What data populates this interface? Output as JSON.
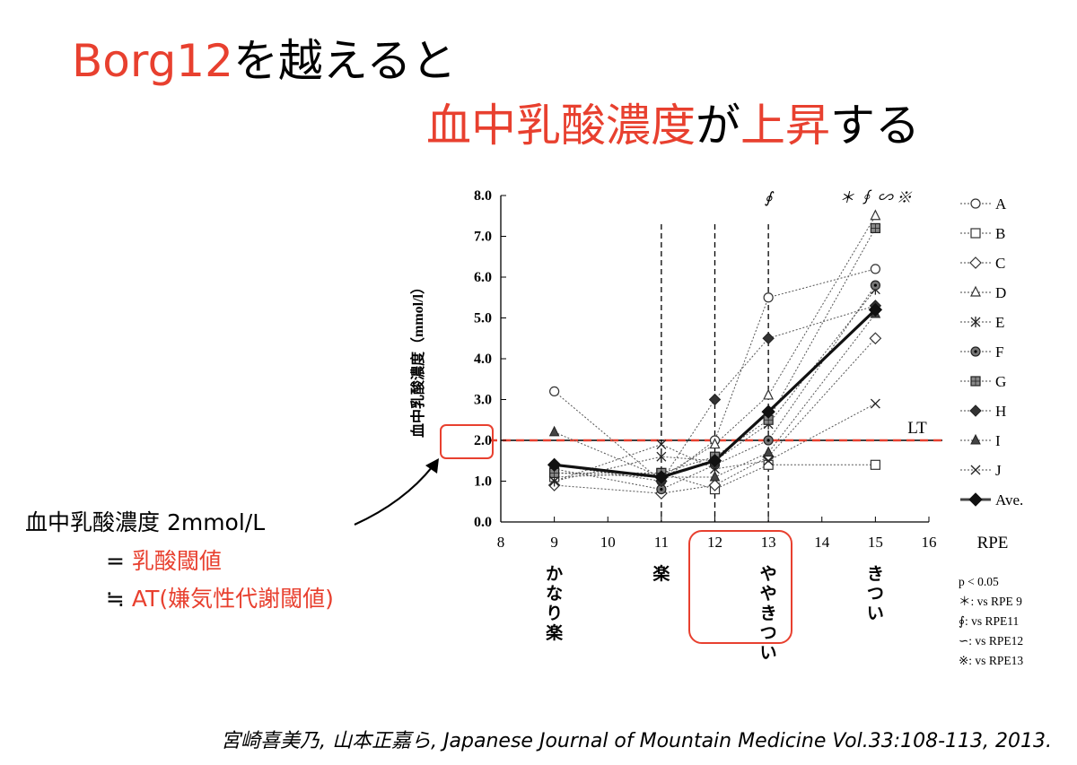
{
  "title": {
    "line1_part1": "Borg12",
    "line1_part2": "を越えると",
    "line2_part1": "血中乳酸濃度",
    "line2_part2": "が",
    "line2_part3": "上昇",
    "line2_part4": "する"
  },
  "annotation": {
    "line1": "血中乳酸濃度 2mmol/L",
    "line2_prefix": "= ",
    "line2_text": "乳酸閾値",
    "line3_prefix": "≒ ",
    "line3_text": "AT(嫌気性代謝閾値)"
  },
  "citation": "宮崎喜美乃, 山本正嘉ら, Japanese Journal of Mountain Medicine Vol.33:108-113, 2013.",
  "colors": {
    "accent_red": "#e8402f",
    "ink": "#000000",
    "ave": "#111111"
  },
  "chart_data": {
    "type": "line",
    "xlabel": "RPE",
    "ylabel": "血中乳酸濃度（mmol/l）",
    "xlim": [
      8,
      16
    ],
    "ylim": [
      0,
      8
    ],
    "x_ticks": [
      "8",
      "9",
      "10",
      "11",
      "12",
      "13",
      "14",
      "15",
      "16"
    ],
    "y_ticks": [
      "0.0",
      "1.0",
      "2.0",
      "3.0",
      "4.0",
      "5.0",
      "6.0",
      "7.0",
      "8.0"
    ],
    "rpe_labels": [
      {
        "x": 9,
        "text": "かなり楽"
      },
      {
        "x": 11,
        "text": "楽"
      },
      {
        "x": 13,
        "text": "ややきつい"
      },
      {
        "x": 15,
        "text": "きつい"
      }
    ],
    "x": [
      9,
      11,
      12,
      13,
      15
    ],
    "series": [
      {
        "name": "A",
        "marker": "circle-open",
        "values": [
          3.2,
          1.0,
          2.0,
          5.5,
          6.2
        ]
      },
      {
        "name": "B",
        "marker": "square-open",
        "values": [
          1.1,
          1.2,
          0.8,
          1.4,
          1.4
        ]
      },
      {
        "name": "C",
        "marker": "diamond-open",
        "values": [
          0.9,
          0.7,
          0.9,
          1.6,
          4.5
        ]
      },
      {
        "name": "D",
        "marker": "triangle-open",
        "values": [
          1.2,
          1.1,
          1.9,
          3.1,
          7.5
        ]
      },
      {
        "name": "E",
        "marker": "asterisk",
        "values": [
          1.0,
          1.6,
          1.5,
          2.4,
          5.7
        ]
      },
      {
        "name": "F",
        "marker": "circle-dot",
        "values": [
          1.3,
          0.8,
          1.4,
          2.0,
          5.8
        ]
      },
      {
        "name": "G",
        "marker": "square-hatched",
        "values": [
          1.2,
          1.2,
          1.6,
          2.5,
          7.2
        ]
      },
      {
        "name": "H",
        "marker": "diamond-filled",
        "values": [
          1.4,
          1.0,
          3.0,
          4.5,
          5.3
        ]
      },
      {
        "name": "I",
        "marker": "triangle-filled",
        "values": [
          2.2,
          1.1,
          1.1,
          1.7,
          5.1
        ]
      },
      {
        "name": "J",
        "marker": "x",
        "values": [
          1.0,
          1.9,
          1.3,
          1.5,
          2.9
        ]
      },
      {
        "name": "Ave.",
        "marker": "diamond-filled-bold",
        "values": [
          1.4,
          1.1,
          1.5,
          2.7,
          5.2
        ]
      }
    ],
    "threshold": {
      "label": "LT",
      "value": 2.0
    },
    "vertical_lines": [
      11,
      12,
      13
    ],
    "significance_marks": [
      {
        "x": 13,
        "text": "∮"
      },
      {
        "x": 15,
        "text": "＊ ∮ ∽ ※"
      }
    ],
    "highlighted_tick": "12",
    "highlighted_label": "ややきつい",
    "highlighted_ytick": "2.0",
    "significance_note": [
      "p < 0.05",
      "＊: vs RPE 9",
      "∮: vs RPE11",
      "∽: vs RPE12",
      "※: vs RPE13"
    ]
  }
}
